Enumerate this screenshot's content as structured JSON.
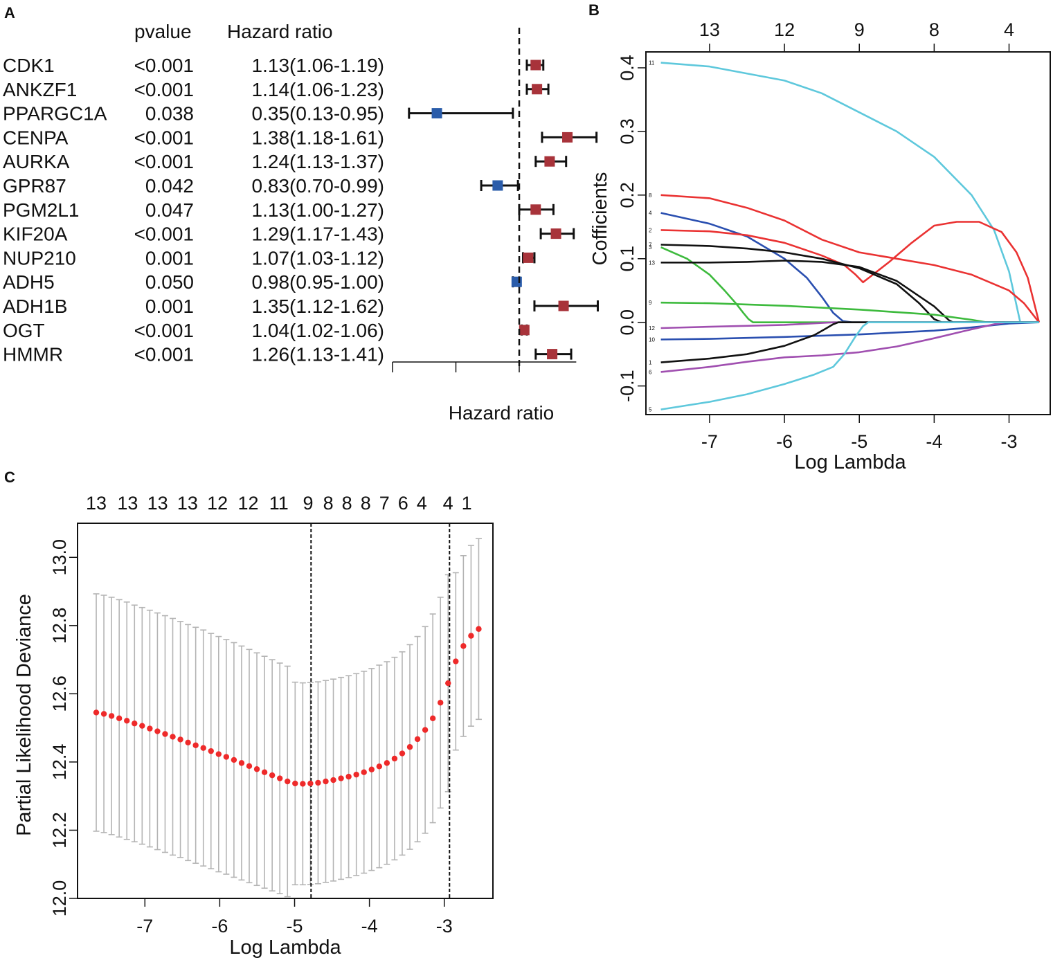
{
  "panels": {
    "a": "A",
    "b": "B",
    "c": "C"
  },
  "chart_data": [
    {
      "type": "forest",
      "panel": "A",
      "headers": {
        "pvalue": "pvalue",
        "hr": "Hazard ratio"
      },
      "xlabel": "Hazard ratio",
      "reference_line": 1.0,
      "xlim": [
        0.0,
        1.45
      ],
      "rows": [
        {
          "gene": "CDK1",
          "pvalue": "<0.001",
          "hr_text": "1.13(1.06-1.19)",
          "hr": 1.13,
          "lo": 1.06,
          "hi": 1.19
        },
        {
          "gene": "ANKZF1",
          "pvalue": "<0.001",
          "hr_text": "1.14(1.06-1.23)",
          "hr": 1.14,
          "lo": 1.06,
          "hi": 1.23
        },
        {
          "gene": "PPARGC1A",
          "pvalue": "0.038",
          "hr_text": "0.35(0.13-0.95)",
          "hr": 0.35,
          "lo": 0.13,
          "hi": 0.95
        },
        {
          "gene": "CENPA",
          "pvalue": "<0.001",
          "hr_text": "1.38(1.18-1.61)",
          "hr": 1.38,
          "lo": 1.18,
          "hi": 1.61
        },
        {
          "gene": "AURKA",
          "pvalue": "<0.001",
          "hr_text": "1.24(1.13-1.37)",
          "hr": 1.24,
          "lo": 1.13,
          "hi": 1.37
        },
        {
          "gene": "GPR87",
          "pvalue": "0.042",
          "hr_text": "0.83(0.70-0.99)",
          "hr": 0.83,
          "lo": 0.7,
          "hi": 0.99
        },
        {
          "gene": "PGM2L1",
          "pvalue": "0.047",
          "hr_text": "1.13(1.00-1.27)",
          "hr": 1.13,
          "lo": 1.0,
          "hi": 1.27
        },
        {
          "gene": "KIF20A",
          "pvalue": "<0.001",
          "hr_text": "1.29(1.17-1.43)",
          "hr": 1.29,
          "lo": 1.17,
          "hi": 1.43
        },
        {
          "gene": "NUP210",
          "pvalue": "0.001",
          "hr_text": "1.07(1.03-1.12)",
          "hr": 1.07,
          "lo": 1.03,
          "hi": 1.12
        },
        {
          "gene": "ADH5",
          "pvalue": "0.050",
          "hr_text": "0.98(0.95-1.00)",
          "hr": 0.98,
          "lo": 0.95,
          "hi": 1.0
        },
        {
          "gene": "ADH1B",
          "pvalue": "0.001",
          "hr_text": "1.35(1.12-1.62)",
          "hr": 1.35,
          "lo": 1.12,
          "hi": 1.62
        },
        {
          "gene": "OGT",
          "pvalue": "<0.001",
          "hr_text": "1.04(1.02-1.06)",
          "hr": 1.04,
          "lo": 1.02,
          "hi": 1.06
        },
        {
          "gene": "HMMR",
          "pvalue": "<0.001",
          "hr_text": "1.26(1.13-1.41)",
          "hr": 1.26,
          "lo": 1.13,
          "hi": 1.41
        }
      ],
      "colors": {
        "risk": "#a8333a",
        "protective": "#2a5caa"
      }
    },
    {
      "type": "line",
      "panel": "B",
      "xlabel": "Log Lambda",
      "ylabel": "Cofficients",
      "xlim": [
        -7.85,
        -2.45
      ],
      "ylim": [
        -0.145,
        0.425
      ],
      "xticks": [
        -7,
        -6,
        -5,
        -4,
        -3
      ],
      "xtick_labels": [
        "-7",
        "-6",
        "-5",
        "-4",
        "-3"
      ],
      "yticks": [
        -0.1,
        0.0,
        0.1,
        0.2,
        0.3,
        0.4
      ],
      "ytick_labels": [
        "-0.1",
        "0.0",
        "0.1",
        "0.2",
        "0.3",
        "0.4"
      ],
      "top_ticks": [
        -7.0,
        -6.0,
        -5.0,
        -4.0,
        -3.0
      ],
      "top_labels": [
        "13",
        "12",
        "9",
        "8",
        "4"
      ],
      "series": [
        {
          "name": "11",
          "color": "#5ec8dc",
          "x": [
            -7.65,
            -7.0,
            -6.0,
            -5.5,
            -5.0,
            -4.5,
            -4.0,
            -3.5,
            -3.2,
            -3.0,
            -2.85,
            -2.6
          ],
          "y": [
            0.408,
            0.402,
            0.38,
            0.36,
            0.33,
            0.3,
            0.26,
            0.2,
            0.145,
            0.08,
            0.0,
            0.0
          ]
        },
        {
          "name": "8",
          "color": "#ea3232",
          "x": [
            -7.65,
            -7.0,
            -6.5,
            -6.0,
            -5.5,
            -5.0,
            -4.5,
            -4.0,
            -3.5,
            -3.0,
            -2.8,
            -2.6
          ],
          "y": [
            0.2,
            0.195,
            0.18,
            0.16,
            0.13,
            0.11,
            0.1,
            0.09,
            0.075,
            0.05,
            0.03,
            0.0
          ]
        },
        {
          "name": "4",
          "color": "#2a4fb0",
          "x": [
            -7.65,
            -7.0,
            -6.5,
            -6.0,
            -5.7,
            -5.5,
            -5.35,
            -5.22,
            -5.1,
            -2.6
          ],
          "y": [
            0.172,
            0.155,
            0.135,
            0.1,
            0.07,
            0.04,
            0.015,
            0.002,
            0.0,
            0.0
          ]
        },
        {
          "name": "2",
          "color": "#ea3232",
          "x": [
            -7.65,
            -7.0,
            -6.5,
            -6.0,
            -5.5,
            -5.2,
            -5.05,
            -4.95,
            -4.85,
            -4.6,
            -4.3,
            -4.0,
            -3.7,
            -3.4,
            -3.1,
            -2.9,
            -2.75,
            -2.6
          ],
          "y": [
            0.145,
            0.143,
            0.137,
            0.125,
            0.105,
            0.09,
            0.075,
            0.063,
            0.072,
            0.095,
            0.125,
            0.152,
            0.158,
            0.158,
            0.142,
            0.11,
            0.07,
            0.0
          ]
        },
        {
          "name": "7",
          "color": "#111111",
          "x": [
            -7.65,
            -7.0,
            -6.5,
            -6.0,
            -5.5,
            -5.0,
            -4.5,
            -4.2,
            -4.0,
            -3.9,
            -2.6
          ],
          "y": [
            0.122,
            0.12,
            0.116,
            0.11,
            0.1,
            0.085,
            0.06,
            0.03,
            0.005,
            0.0,
            0.0
          ]
        },
        {
          "name": "3",
          "color": "#3dba3d",
          "x": [
            -7.65,
            -7.3,
            -7.0,
            -6.8,
            -6.65,
            -6.55,
            -6.48,
            -6.42,
            -2.6
          ],
          "y": [
            0.118,
            0.1,
            0.075,
            0.05,
            0.03,
            0.015,
            0.005,
            0.0,
            0.0
          ]
        },
        {
          "name": "13",
          "color": "#111111",
          "x": [
            -7.65,
            -7.0,
            -6.5,
            -6.0,
            -5.5,
            -5.0,
            -4.5,
            -4.0,
            -3.8,
            -3.75,
            -2.6
          ],
          "y": [
            0.094,
            0.094,
            0.095,
            0.097,
            0.095,
            0.087,
            0.065,
            0.025,
            0.003,
            0.0,
            0.0
          ]
        },
        {
          "name": "9",
          "color": "#3dba3d",
          "x": [
            -7.65,
            -7.0,
            -6.0,
            -5.0,
            -4.0,
            -3.5,
            -3.3,
            -2.6
          ],
          "y": [
            0.031,
            0.03,
            0.026,
            0.02,
            0.012,
            0.004,
            0.0,
            0.0
          ]
        },
        {
          "name": "12",
          "color": "#a04fb0",
          "x": [
            -7.65,
            -7.0,
            -6.0,
            -5.5,
            -5.35,
            -2.6
          ],
          "y": [
            -0.009,
            -0.007,
            -0.004,
            -0.001,
            0.0,
            0.0
          ]
        },
        {
          "name": "10",
          "color": "#2a4fb0",
          "x": [
            -7.65,
            -7.0,
            -6.0,
            -5.0,
            -4.0,
            -3.5,
            -3.0,
            -2.6
          ],
          "y": [
            -0.027,
            -0.026,
            -0.023,
            -0.019,
            -0.013,
            -0.008,
            -0.002,
            0.0
          ]
        },
        {
          "name": "1",
          "color": "#111111",
          "x": [
            -7.65,
            -7.0,
            -6.5,
            -6.0,
            -5.6,
            -5.45,
            -5.35,
            -5.28,
            -2.6
          ],
          "y": [
            -0.063,
            -0.057,
            -0.05,
            -0.037,
            -0.02,
            -0.01,
            -0.003,
            0.0,
            0.0
          ]
        },
        {
          "name": "6",
          "color": "#a04fb0",
          "x": [
            -7.65,
            -7.0,
            -6.5,
            -6.0,
            -5.5,
            -5.0,
            -4.5,
            -4.0,
            -3.5,
            -3.2,
            -3.05,
            -2.6
          ],
          "y": [
            -0.078,
            -0.07,
            -0.062,
            -0.055,
            -0.052,
            -0.047,
            -0.038,
            -0.025,
            -0.011,
            -0.003,
            0.0,
            0.0
          ]
        },
        {
          "name": "5",
          "color": "#5ec8dc",
          "x": [
            -7.65,
            -7.0,
            -6.5,
            -6.0,
            -5.6,
            -5.35,
            -5.2,
            -5.05,
            -4.95,
            -4.88,
            -2.6
          ],
          "y": [
            -0.137,
            -0.125,
            -0.113,
            -0.097,
            -0.082,
            -0.07,
            -0.05,
            -0.022,
            -0.006,
            0.0,
            0.0
          ]
        }
      ]
    },
    {
      "type": "scatter",
      "panel": "C",
      "xlabel": "Log Lambda",
      "ylabel": "Partial Likelihood Deviance",
      "xlim": [
        -7.9,
        -2.35
      ],
      "ylim": [
        12.0,
        13.1
      ],
      "xticks": [
        -7,
        -6,
        -5,
        -4,
        -3
      ],
      "xtick_labels": [
        "-7",
        "-6",
        "-5",
        "-4",
        "-3"
      ],
      "yticks": [
        12.0,
        12.2,
        12.4,
        12.6,
        12.8,
        13.0
      ],
      "ytick_labels": [
        "12.0",
        "12.2",
        "12.4",
        "12.6",
        "12.8",
        "13.0"
      ],
      "top_counts": [
        "13",
        "13",
        "13",
        "13",
        "12",
        "12",
        "11",
        "9",
        "8",
        "8",
        "8",
        "7",
        "6",
        "4",
        "4",
        "1"
      ],
      "top_count_positions": [
        -7.65,
        -7.23,
        -6.83,
        -6.43,
        -6.03,
        -5.62,
        -5.21,
        -4.82,
        -4.55,
        -4.3,
        -4.05,
        -3.8,
        -3.55,
        -3.3,
        -2.95,
        -2.7
      ],
      "lambda_min": -4.78,
      "lambda_1se": -2.93,
      "point_color": "#ee2a2a",
      "errorbar_color": "#b4b4b4",
      "x_start": -7.65,
      "x_end": -2.54,
      "cv_mean": [
        12.545,
        12.541,
        12.535,
        12.528,
        12.521,
        12.513,
        12.506,
        12.498,
        12.49,
        12.482,
        12.474,
        12.466,
        12.457,
        12.449,
        12.441,
        12.432,
        12.423,
        12.415,
        12.406,
        12.397,
        12.388,
        12.379,
        12.37,
        12.361,
        12.352,
        12.343,
        12.337,
        12.336,
        12.337,
        12.339,
        12.343,
        12.347,
        12.352,
        12.357,
        12.363,
        12.37,
        12.378,
        12.387,
        12.397,
        12.41,
        12.425,
        12.444,
        12.467,
        12.494,
        12.528,
        12.574,
        12.631,
        12.695,
        12.74,
        12.77,
        12.79
      ],
      "cv_se": [
        0.348,
        0.348,
        0.348,
        0.348,
        0.348,
        0.347,
        0.347,
        0.347,
        0.347,
        0.347,
        0.347,
        0.346,
        0.346,
        0.346,
        0.346,
        0.345,
        0.345,
        0.344,
        0.344,
        0.343,
        0.342,
        0.341,
        0.34,
        0.339,
        0.338,
        0.338,
        0.297,
        0.296,
        0.296,
        0.296,
        0.296,
        0.296,
        0.296,
        0.296,
        0.296,
        0.296,
        0.296,
        0.297,
        0.297,
        0.297,
        0.298,
        0.3,
        0.301,
        0.303,
        0.306,
        0.309,
        0.318,
        0.26,
        0.265,
        0.265,
        0.265
      ]
    }
  ]
}
